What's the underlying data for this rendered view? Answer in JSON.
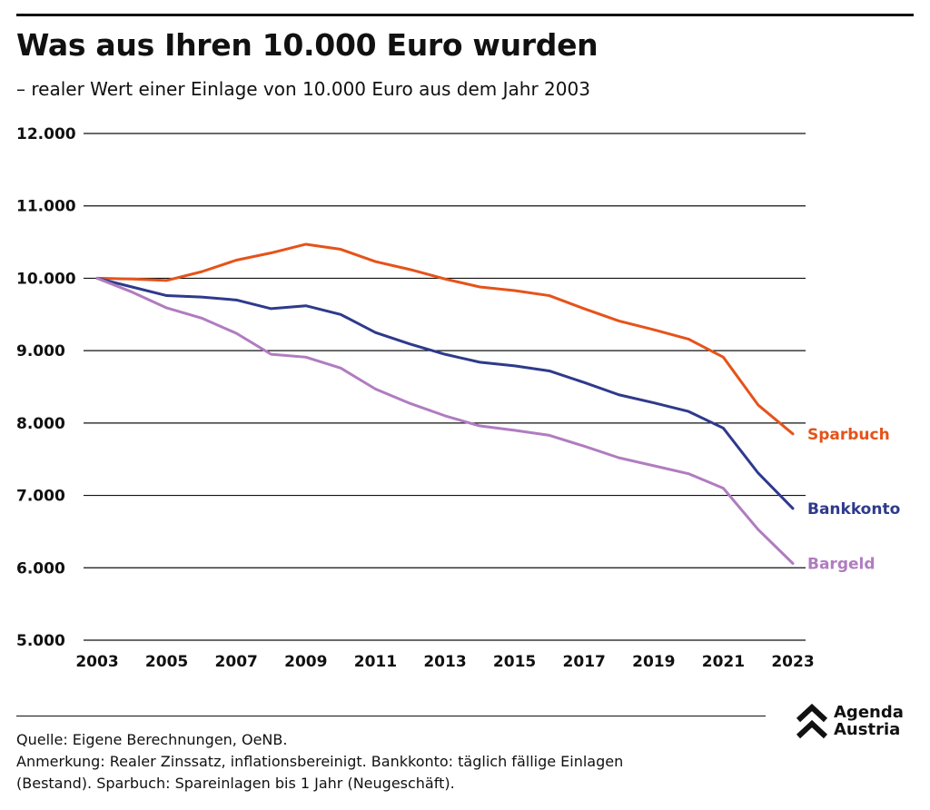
{
  "header": {
    "title": "Was aus Ihren 10.000 Euro wurden",
    "subtitle": "– realer Wert einer Einlage von 10.000 Euro aus dem Jahr 2003"
  },
  "footer": {
    "source": "Quelle: Eigene Berechnungen, OeNB.",
    "note_line1": "Anmerkung: Realer Zinssatz, inflationsbereinigt. Bankkonto: täglich fällige Einlagen",
    "note_line2": "(Bestand). Sparbuch: Spareinlagen bis 1 Jahr (Neugeschäft)."
  },
  "logo": {
    "line1": "Agenda",
    "line2": "Austria",
    "icon": "double-chevron-up-icon"
  },
  "chart_data": {
    "type": "line",
    "title": "Was aus Ihren 10.000 Euro wurden",
    "subtitle": "– realer Wert einer Einlage von 10.000 Euro aus dem Jahr 2003",
    "x": [
      2003,
      2004,
      2005,
      2006,
      2007,
      2008,
      2009,
      2010,
      2011,
      2012,
      2013,
      2014,
      2015,
      2016,
      2017,
      2018,
      2019,
      2020,
      2021,
      2022,
      2023
    ],
    "ylim": [
      5000,
      12000
    ],
    "yticks": [
      5000,
      6000,
      7000,
      8000,
      9000,
      10000,
      11000,
      12000
    ],
    "ytick_labels": [
      "5.000",
      "6.000",
      "7.000",
      "8.000",
      "9.000",
      "10.000",
      "11.000",
      "12.000"
    ],
    "xticks": [
      2003,
      2005,
      2007,
      2009,
      2011,
      2013,
      2015,
      2017,
      2019,
      2021,
      2023
    ],
    "xtick_labels": [
      "2003",
      "2005",
      "2007",
      "2009",
      "2011",
      "2013",
      "2015",
      "2017",
      "2019",
      "2021",
      "2023"
    ],
    "grid": "horizontal",
    "legend": "line-end labels",
    "series": [
      {
        "name": "Sparbuch",
        "color": "#e5531a",
        "values": [
          10000,
          9990,
          9970,
          10090,
          10250,
          10350,
          10470,
          10400,
          10230,
          10120,
          9990,
          9880,
          9830,
          9760,
          9580,
          9410,
          9290,
          9160,
          8910,
          8250,
          7850
        ]
      },
      {
        "name": "Bankkonto",
        "color": "#2e3a8c",
        "values": [
          10000,
          9880,
          9760,
          9740,
          9700,
          9580,
          9620,
          9500,
          9250,
          9090,
          8950,
          8840,
          8790,
          8720,
          8560,
          8390,
          8280,
          8160,
          7930,
          7310,
          6820
        ]
      },
      {
        "name": "Bargeld",
        "color": "#b07cc0",
        "values": [
          10000,
          9810,
          9590,
          9450,
          9240,
          8950,
          8910,
          8760,
          8470,
          8270,
          8100,
          7960,
          7900,
          7830,
          7680,
          7520,
          7410,
          7300,
          7100,
          6530,
          6060
        ]
      }
    ]
  }
}
